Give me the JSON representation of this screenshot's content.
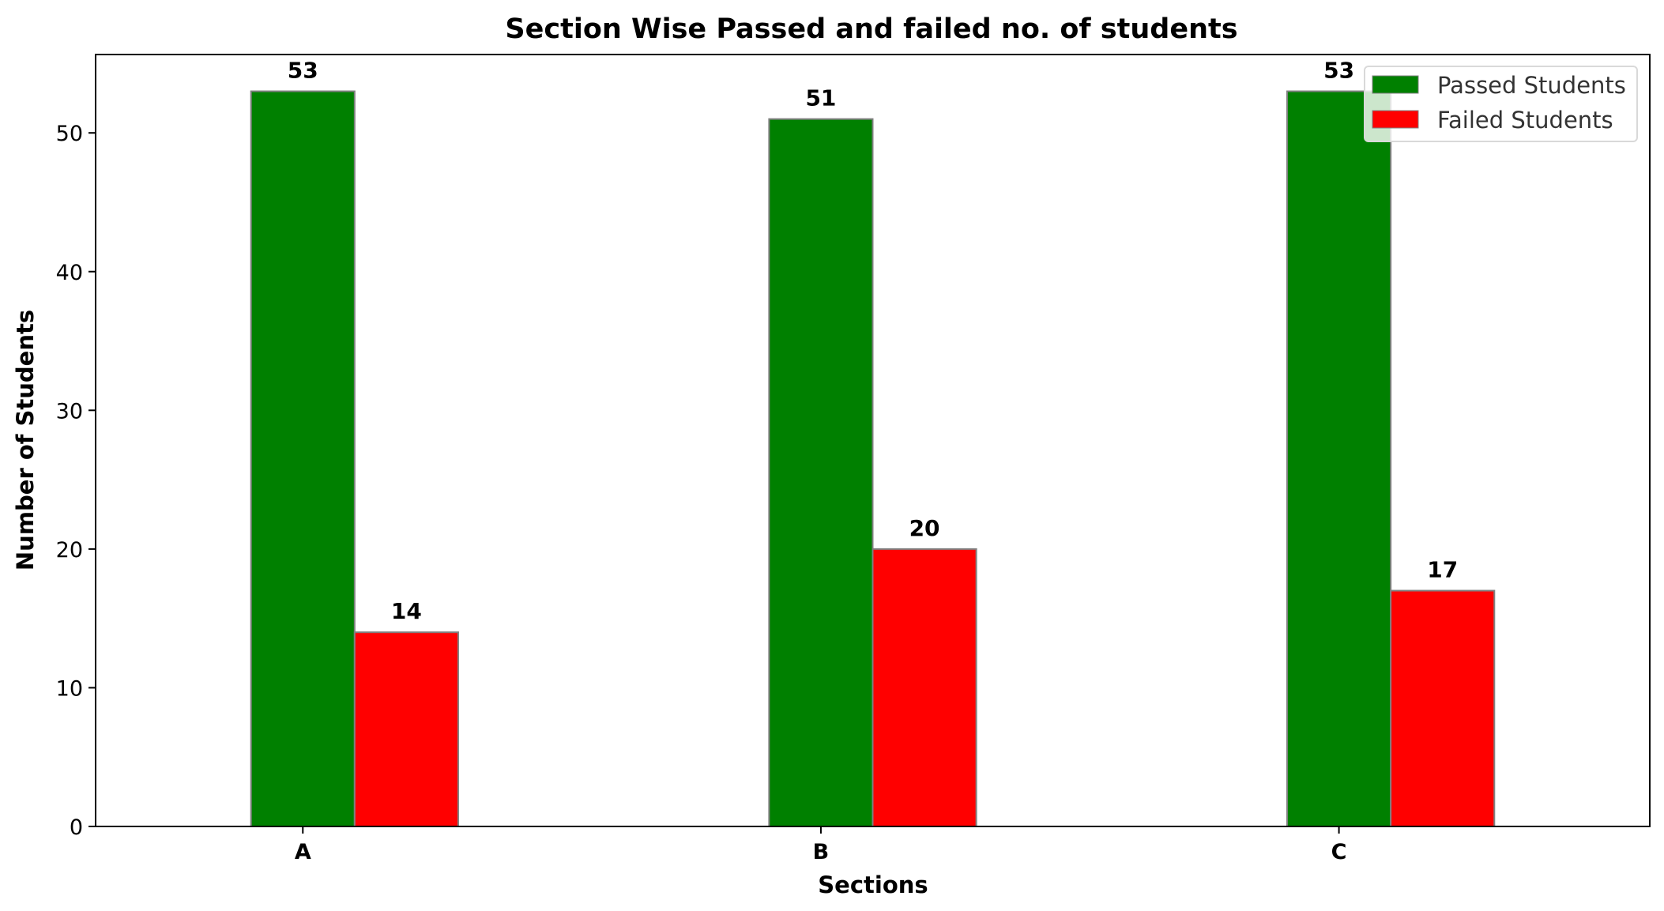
{
  "chart_data": {
    "type": "bar",
    "title": "Section Wise Passed and failed no. of students",
    "xlabel": "Sections",
    "ylabel": "Number of Students",
    "categories": [
      "A",
      "B",
      "C"
    ],
    "series": [
      {
        "name": "Passed Students",
        "values": [
          53,
          51,
          53
        ],
        "color": "#008000"
      },
      {
        "name": "Failed Students",
        "values": [
          14,
          20,
          17
        ],
        "color": "#ff0000"
      }
    ],
    "ylim": [
      0,
      55.65
    ],
    "yticks": [
      0,
      10,
      20,
      30,
      40,
      50
    ],
    "grid": false,
    "legend_position": "top-right",
    "bar_edge_color": "#808080"
  }
}
